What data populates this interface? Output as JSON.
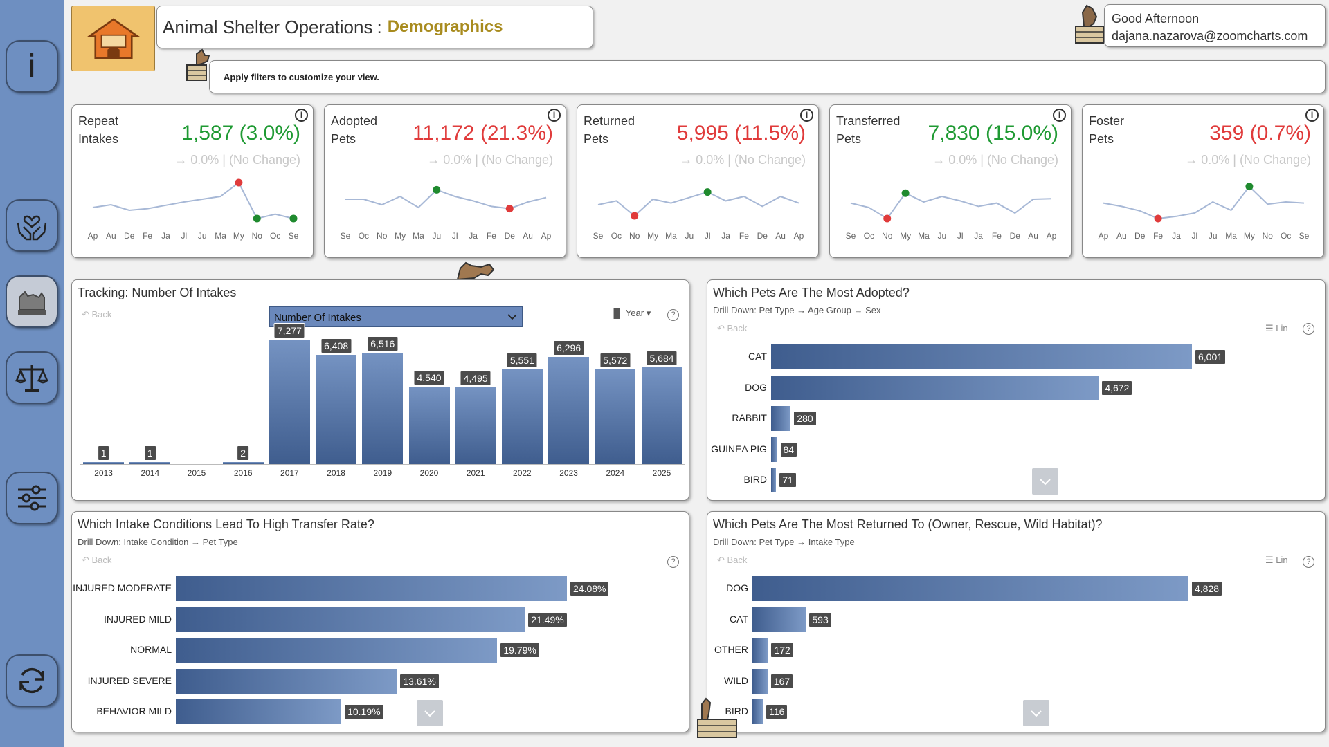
{
  "header": {
    "title": "Animal Shelter Operations",
    "title_separator": ":",
    "subtitle": "Demographics",
    "logo_text": "ANIMAL SHELTER",
    "filter_hint": "Apply filters to customize your view.",
    "greeting": "Good Afternoon",
    "user_email": "dajana.nazarova@zoomcharts.com"
  },
  "sidebar": {
    "items": [
      {
        "name": "info",
        "icon": "info-icon",
        "label": "i"
      },
      {
        "name": "care",
        "icon": "hands-heart-icon"
      },
      {
        "name": "demographics",
        "icon": "animals-icon",
        "active": true
      },
      {
        "name": "balance",
        "icon": "scale-icon"
      },
      {
        "name": "filters",
        "icon": "sliders-icon"
      },
      {
        "name": "reset",
        "icon": "refresh-icon"
      }
    ]
  },
  "kpis": [
    {
      "label_line1": "Repeat",
      "label_line2": "Intakes",
      "value": "1,587 (3.0%)",
      "color": "green",
      "delta": "→ 0.0% | (No Change)",
      "months": [
        "Ap",
        "Au",
        "De",
        "Fe",
        "Ja",
        "Jl",
        "Ju",
        "Ma",
        "My",
        "No",
        "Oc",
        "Se"
      ],
      "series": [
        40,
        45,
        35,
        38,
        44,
        50,
        55,
        60,
        85,
        20,
        28,
        20
      ],
      "max_index": 8,
      "min_index": 9,
      "min2_index": 11
    },
    {
      "label_line1": "Adopted",
      "label_line2": "Pets",
      "value": "11,172 (21.3%)",
      "color": "red",
      "delta": "→ 0.0% | (No Change)",
      "months": [
        "Se",
        "Oc",
        "No",
        "My",
        "Ma",
        "Ju",
        "Jl",
        "Ja",
        "Fe",
        "De",
        "Au",
        "Ap"
      ],
      "series": [
        55,
        55,
        45,
        60,
        40,
        72,
        60,
        52,
        42,
        38,
        50,
        58
      ],
      "max_index": 5,
      "min_index": 9
    },
    {
      "label_line1": "Returned",
      "label_line2": "Pets",
      "value": "5,995 (11.5%)",
      "color": "red",
      "delta": "→ 0.0% | (No Change)",
      "months": [
        "Se",
        "Oc",
        "No",
        "My",
        "Ma",
        "Ju",
        "Jl",
        "Ja",
        "Fe",
        "De",
        "Au",
        "Ap"
      ],
      "series": [
        45,
        52,
        25,
        55,
        48,
        58,
        68,
        52,
        60,
        42,
        60,
        48
      ],
      "max_index": 6,
      "min_index": 2
    },
    {
      "label_line1": "Transferred",
      "label_line2": "Pets",
      "value": "7,830 (15.0%)",
      "color": "green",
      "delta": "→ 0.0% | (No Change)",
      "months": [
        "Se",
        "Oc",
        "No",
        "My",
        "Ma",
        "Ju",
        "Jl",
        "Ja",
        "Fe",
        "De",
        "Au",
        "Ap"
      ],
      "series": [
        48,
        40,
        20,
        66,
        50,
        60,
        52,
        42,
        48,
        30,
        55,
        56
      ],
      "max_index": 3,
      "min_index": 2
    },
    {
      "label_line1": "Foster",
      "label_line2": "Pets",
      "value": "359 (0.7%)",
      "color": "red",
      "delta": "→ 0.0% | (No Change)",
      "months": [
        "Ap",
        "Au",
        "De",
        "Fe",
        "Ja",
        "Jl",
        "Ju",
        "Ma",
        "My",
        "No",
        "Oc",
        "Se"
      ],
      "series": [
        48,
        42,
        34,
        20,
        24,
        30,
        50,
        35,
        78,
        46,
        50,
        48
      ],
      "max_index": 8,
      "min_index": 3
    }
  ],
  "intakes_panel": {
    "title": "Tracking: Number Of Intakes",
    "back": "Back",
    "dropdown": "Number Of Intakes",
    "year_control": "Year",
    "help": "?"
  },
  "adopted_panel": {
    "title": "Which Pets Are The Most Adopted?",
    "drilldown": "Drill Down: Pet Type → Age Group → Sex",
    "back": "Back",
    "lin": "Lin",
    "help": "?"
  },
  "transfer_panel": {
    "title": "Which Intake Conditions Lead To High Transfer Rate?",
    "drilldown": "Drill Down: Intake Condition → Pet Type",
    "back": "Back",
    "help": "?"
  },
  "returned_panel": {
    "title": "Which Pets Are The Most Returned To (Owner, Rescue, Wild Habitat)?",
    "drilldown": "Drill Down: Pet Type → Intake Type",
    "back": "Back",
    "lin": "Lin",
    "help": "?"
  },
  "chart_data": [
    {
      "type": "bar",
      "title": "Tracking: Number Of Intakes",
      "categories": [
        "2013",
        "2014",
        "2015",
        "2016",
        "2017",
        "2018",
        "2019",
        "2020",
        "2021",
        "2022",
        "2023",
        "2024",
        "2025"
      ],
      "values": [
        1,
        1,
        0,
        2,
        7277,
        6408,
        6516,
        4540,
        4495,
        5551,
        6296,
        5572,
        5684
      ],
      "labels": [
        "1",
        "1",
        "",
        "2",
        "7,277",
        "6,408",
        "6,516",
        "4,540",
        "4,495",
        "5,551",
        "6,296",
        "5,572",
        "5,684"
      ],
      "ylim": [
        0,
        7700
      ]
    },
    {
      "type": "bar",
      "orientation": "horizontal",
      "title": "Which Pets Are The Most Adopted?",
      "categories": [
        "CAT",
        "DOG",
        "RABBIT",
        "GUINEA PIG",
        "BIRD"
      ],
      "values": [
        6001,
        4672,
        280,
        84,
        71
      ],
      "labels": [
        "6,001",
        "4,672",
        "280",
        "84",
        "71"
      ]
    },
    {
      "type": "bar",
      "orientation": "horizontal",
      "title": "Which Intake Conditions Lead To High Transfer Rate?",
      "categories": [
        "INJURED MODERATE",
        "INJURED MILD",
        "NORMAL",
        "INJURED SEVERE",
        "BEHAVIOR MILD"
      ],
      "values": [
        24.08,
        21.49,
        19.79,
        13.61,
        10.19
      ],
      "labels": [
        "24.08%",
        "21.49%",
        "19.79%",
        "13.61%",
        "10.19%"
      ]
    },
    {
      "type": "bar",
      "orientation": "horizontal",
      "title": "Which Pets Are The Most Returned To (Owner, Rescue, Wild Habitat)?",
      "categories": [
        "DOG",
        "CAT",
        "OTHER",
        "WILD",
        "BIRD"
      ],
      "values": [
        4828,
        593,
        172,
        167,
        116
      ],
      "labels": [
        "4,828",
        "593",
        "172",
        "167",
        "116"
      ]
    }
  ]
}
